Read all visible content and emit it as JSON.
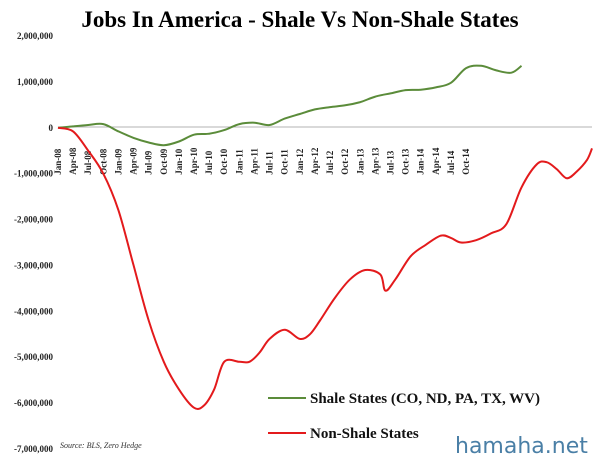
{
  "chart_data": {
    "type": "line",
    "title": "Jobs In America - Shale Vs Non-Shale States",
    "xlabel": "",
    "ylabel": "",
    "ylim": [
      -7000000,
      2000000
    ],
    "yticks": [
      2000000,
      1000000,
      0,
      -1000000,
      -2000000,
      -3000000,
      -4000000,
      -5000000,
      -6000000,
      -7000000
    ],
    "ytick_labels": [
      "2,000,000",
      "1,000,000",
      "0",
      "-1,000,000",
      "-2,000,000",
      "-3,000,000",
      "-4,000,000",
      "-5,000,000",
      "-6,000,000",
      "-7,000,000"
    ],
    "xtick_labels": [
      "Jan-08",
      "Apr-08",
      "Jul-08",
      "Oct-08",
      "Jan-09",
      "Apr-09",
      "Jul-09",
      "Oct-09",
      "Jan-10",
      "Apr-10",
      "Jul-10",
      "Oct-10",
      "Jan-11",
      "Apr-11",
      "Jul-11",
      "Oct-11",
      "Jan-12",
      "Apr-12",
      "Jul-12",
      "Oct-12",
      "Jan-13",
      "Apr-13",
      "Jul-13",
      "Oct-13",
      "Jan-14",
      "Apr-14",
      "Jul-14",
      "Oct-14"
    ],
    "grid": false,
    "legend_position": "bottom-right",
    "series": [
      {
        "name": "Shale States (CO, ND, PA, TX, WV)",
        "color": "#5b8c3a",
        "points": [
          [
            0,
            0
          ],
          [
            3,
            30000
          ],
          [
            6,
            60000
          ],
          [
            9,
            80000
          ],
          [
            12,
            -80000
          ],
          [
            15,
            -220000
          ],
          [
            18,
            -320000
          ],
          [
            21,
            -380000
          ],
          [
            24,
            -300000
          ],
          [
            27,
            -150000
          ],
          [
            30,
            -130000
          ],
          [
            33,
            -50000
          ],
          [
            36,
            80000
          ],
          [
            39,
            110000
          ],
          [
            42,
            60000
          ],
          [
            45,
            200000
          ],
          [
            48,
            300000
          ],
          [
            51,
            400000
          ],
          [
            54,
            450000
          ],
          [
            57,
            490000
          ],
          [
            60,
            560000
          ],
          [
            63,
            680000
          ],
          [
            66,
            750000
          ],
          [
            69,
            820000
          ],
          [
            72,
            830000
          ],
          [
            75,
            880000
          ],
          [
            78,
            980000
          ],
          [
            81,
            1300000
          ],
          [
            84,
            1350000
          ],
          [
            87,
            1250000
          ],
          [
            90,
            1200000
          ],
          [
            92,
            1350000
          ]
        ]
      },
      {
        "name": "Non-Shale States",
        "color": "#e31a1c",
        "points": [
          [
            0,
            0
          ],
          [
            3,
            -80000
          ],
          [
            6,
            -500000
          ],
          [
            9,
            -1000000
          ],
          [
            12,
            -1800000
          ],
          [
            15,
            -3000000
          ],
          [
            18,
            -4200000
          ],
          [
            21,
            -5100000
          ],
          [
            24,
            -5700000
          ],
          [
            27,
            -6100000
          ],
          [
            29,
            -6050000
          ],
          [
            31,
            -5700000
          ],
          [
            33,
            -5100000
          ],
          [
            36,
            -5100000
          ],
          [
            38,
            -5100000
          ],
          [
            40,
            -4900000
          ],
          [
            42,
            -4600000
          ],
          [
            45,
            -4400000
          ],
          [
            48,
            -4600000
          ],
          [
            50,
            -4500000
          ],
          [
            52,
            -4200000
          ],
          [
            55,
            -3700000
          ],
          [
            58,
            -3300000
          ],
          [
            61,
            -3100000
          ],
          [
            64,
            -3200000
          ],
          [
            65,
            -3550000
          ],
          [
            67,
            -3300000
          ],
          [
            70,
            -2800000
          ],
          [
            73,
            -2550000
          ],
          [
            76,
            -2350000
          ],
          [
            78,
            -2400000
          ],
          [
            80,
            -2500000
          ],
          [
            83,
            -2450000
          ],
          [
            86,
            -2300000
          ],
          [
            89,
            -2100000
          ],
          [
            92,
            -1300000
          ],
          [
            95,
            -800000
          ],
          [
            97,
            -750000
          ],
          [
            99,
            -900000
          ],
          [
            101,
            -1100000
          ],
          [
            103,
            -950000
          ],
          [
            105,
            -700000
          ],
          [
            106,
            -450000
          ]
        ]
      }
    ],
    "x_max_index": 106,
    "source": "Source: BLS, Zero Hedge"
  },
  "watermark": "hamaha.net"
}
